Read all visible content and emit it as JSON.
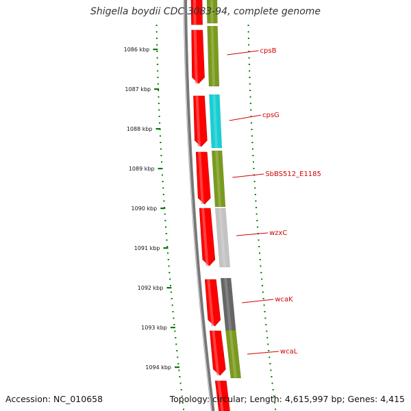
{
  "title": "Shigella boydii CDC 3083-94, complete genome",
  "footer": {
    "accession": "Accession: NC_010658",
    "summary": "Topology: circular; Length: 4,615,997 bp; Genes: 4,415"
  },
  "colors": {
    "forward_cds": "#ff0000",
    "cog_olive": "#7a9a1e",
    "cog_cyan": "#16cfd4",
    "cog_lightgray": "#c3c3c3",
    "cog_darkgray": "#666666",
    "label_red": "#d10000",
    "dotted_track": "#007a00",
    "backbone": "#777777"
  },
  "ticks": [
    {
      "label": "1086 kbp"
    },
    {
      "label": "1087 kbp"
    },
    {
      "label": "1088 kbp"
    },
    {
      "label": "1089 kbp"
    },
    {
      "label": "1090 kbp"
    },
    {
      "label": "1091 kbp"
    },
    {
      "label": "1092 kbp"
    },
    {
      "label": "1093 kbp"
    },
    {
      "label": "1094 kbp"
    }
  ],
  "genes": [
    {
      "name": "cpsB",
      "cog_color": "cog_olive"
    },
    {
      "name": "cpsG",
      "cog_color": "cog_cyan"
    },
    {
      "name": "SbBS512_E1185",
      "cog_color": "cog_olive"
    },
    {
      "name": "wzxC",
      "cog_color": "cog_lightgray"
    },
    {
      "name": "wcaK",
      "cog_color": "cog_darkgray"
    },
    {
      "name": "wcaL",
      "cog_color": "cog_olive"
    }
  ]
}
